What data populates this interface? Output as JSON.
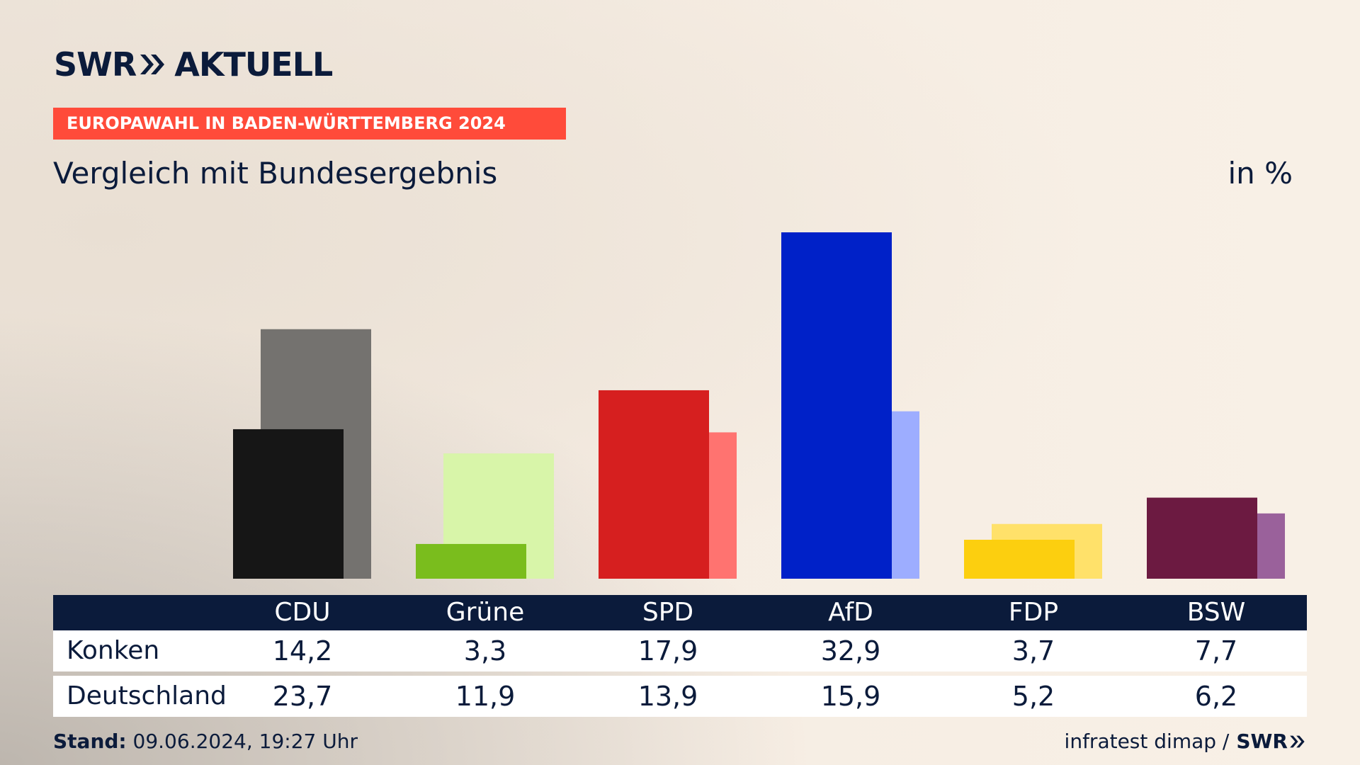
{
  "brand": {
    "swr": "SWR",
    "aktuell": "AKTUELL"
  },
  "kicker": "EUROPAWAHL IN BADEN-WÜRTTEMBERG 2024",
  "subtitle": "Vergleich mit Bundesergebnis",
  "unit": "in %",
  "table": {
    "parties": [
      "CDU",
      "Grüne",
      "SPD",
      "AfD",
      "FDP",
      "BSW"
    ],
    "rows": [
      {
        "label": "Konken",
        "values": [
          "14,2",
          "3,3",
          "17,9",
          "32,9",
          "3,7",
          "7,7"
        ]
      },
      {
        "label": "Deutschland",
        "values": [
          "23,7",
          "11,9",
          "13,9",
          "15,9",
          "5,2",
          "6,2"
        ]
      }
    ]
  },
  "footer": {
    "stand_label": "Stand:",
    "stand_value": "09.06.2024, 19:27 Uhr",
    "source": "infratest dimap /",
    "source_brand": "SWR"
  },
  "chart_data": {
    "type": "bar",
    "categories": [
      "CDU",
      "Grüne",
      "SPD",
      "AfD",
      "FDP",
      "BSW"
    ],
    "series": [
      {
        "name": "Konken",
        "values": [
          14.2,
          3.3,
          17.9,
          32.9,
          3.7,
          7.7
        ],
        "colors": [
          "#161616",
          "#7abd1d",
          "#d61f1f",
          "#0021c8",
          "#fccf0f",
          "#6c1a41"
        ]
      },
      {
        "name": "Deutschland",
        "values": [
          23.7,
          11.9,
          13.9,
          15.9,
          5.2,
          6.2
        ],
        "colors": [
          "#74726f",
          "#d8f5a9",
          "#ff7370",
          "#9dadff",
          "#ffe16a",
          "#9a619b"
        ]
      }
    ],
    "ylim": [
      0,
      32.9
    ],
    "grid": false,
    "legend": "table"
  }
}
